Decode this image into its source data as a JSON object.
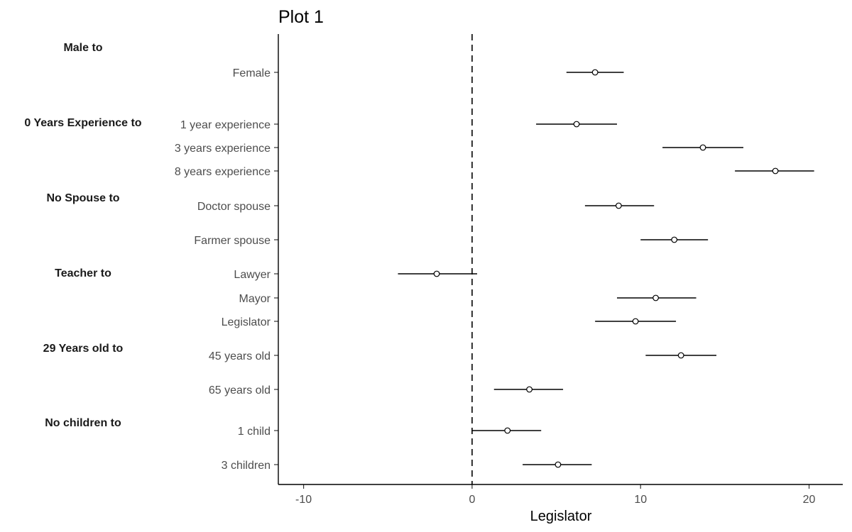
{
  "chart_data": {
    "type": "scatter",
    "title": "Plot 1",
    "xlabel": "Legislator",
    "ylabel": "",
    "xlim": [
      -11.5,
      22
    ],
    "xticks": [
      -10,
      0,
      10,
      20
    ],
    "reference_line": {
      "x": 0,
      "style": "dashed"
    },
    "grid": false,
    "legend": "none",
    "groups": [
      {
        "label": "Male to",
        "row": 0
      },
      {
        "label": "0 Years Experience to",
        "row": 1
      },
      {
        "label": "No Spouse to",
        "row": 2
      },
      {
        "label": "Teacher to",
        "row": 3
      },
      {
        "label": "29 Years old to",
        "row": 4
      },
      {
        "label": "No children to",
        "row": 5
      }
    ],
    "points": [
      {
        "label": "Female",
        "estimate": 7.3,
        "lower": 5.6,
        "upper": 9.0
      },
      {
        "label": "1 year experience",
        "estimate": 6.2,
        "lower": 3.8,
        "upper": 8.6
      },
      {
        "label": "3 years experience",
        "estimate": 13.7,
        "lower": 11.3,
        "upper": 16.1
      },
      {
        "label": "8 years experience",
        "estimate": 18.0,
        "lower": 15.6,
        "upper": 20.3
      },
      {
        "label": "Doctor spouse",
        "estimate": 8.7,
        "lower": 6.7,
        "upper": 10.8
      },
      {
        "label": "Farmer spouse",
        "estimate": 12.0,
        "lower": 10.0,
        "upper": 14.0
      },
      {
        "label": "Lawyer",
        "estimate": -2.1,
        "lower": -4.4,
        "upper": 0.3
      },
      {
        "label": "Mayor",
        "estimate": 10.9,
        "lower": 8.6,
        "upper": 13.3
      },
      {
        "label": "Legislator",
        "estimate": 9.7,
        "lower": 7.3,
        "upper": 12.1
      },
      {
        "label": "45 years old",
        "estimate": 12.4,
        "lower": 10.3,
        "upper": 14.5
      },
      {
        "label": "65 years old",
        "estimate": 3.4,
        "lower": 1.3,
        "upper": 5.4
      },
      {
        "label": "1 child",
        "estimate": 2.1,
        "lower": 0.0,
        "upper": 4.1
      },
      {
        "label": "3 children",
        "estimate": 5.1,
        "lower": 3.0,
        "upper": 7.1
      }
    ]
  }
}
